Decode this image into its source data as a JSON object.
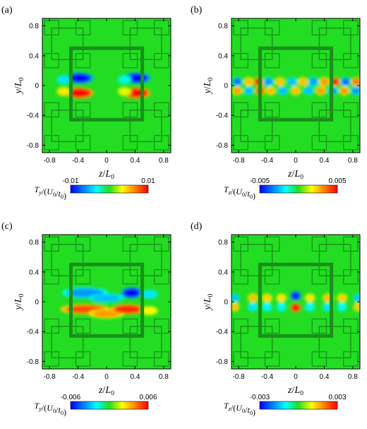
{
  "chart_data": [
    {
      "type": "heatmap",
      "panel_label": "(a)",
      "xlabel": "z/L0",
      "ylabel": "y/L0",
      "xticks": [
        "-0.8",
        "-0.4",
        "0",
        "0.4",
        "0.8"
      ],
      "yticks": [
        "0.8",
        "0.4",
        "0",
        "-0.4",
        "-0.8"
      ],
      "xlim": [
        -0.9,
        0.9
      ],
      "ylim": [
        -0.9,
        0.9
      ],
      "colorbar": {
        "label": "Ty/(U0/t0)",
        "min": -0.01,
        "max": 0.01,
        "min_label": "-0.01",
        "max_label": "0.01"
      },
      "field": [
        {
          "z": -0.38,
          "y": 0.1,
          "value": -1.0,
          "sz": 0.16,
          "sy": 0.06
        },
        {
          "z": 0.42,
          "y": 0.1,
          "value": -1.0,
          "sz": 0.16,
          "sy": 0.06
        },
        {
          "z": -0.38,
          "y": -0.1,
          "value": 1.0,
          "sz": 0.16,
          "sy": 0.06
        },
        {
          "z": 0.42,
          "y": -0.1,
          "value": 1.0,
          "sz": 0.16,
          "sy": 0.06
        },
        {
          "z": -0.6,
          "y": 0.08,
          "value": -0.4,
          "sz": 0.08,
          "sy": 0.05
        },
        {
          "z": -0.6,
          "y": -0.08,
          "value": 0.4,
          "sz": 0.08,
          "sy": 0.05
        },
        {
          "z": 0.25,
          "y": 0.08,
          "value": -0.3,
          "sz": 0.08,
          "sy": 0.05
        },
        {
          "z": 0.25,
          "y": -0.08,
          "value": 0.3,
          "sz": 0.08,
          "sy": 0.05
        }
      ]
    },
    {
      "type": "heatmap",
      "panel_label": "(b)",
      "xlabel": "z/L0",
      "ylabel": "y/L0",
      "xticks": [
        "-0.8",
        "-0.4",
        "0",
        "0.4",
        "0.8"
      ],
      "yticks": [
        "0.8",
        "0.4",
        "0",
        "-0.4",
        "-0.8"
      ],
      "xlim": [
        -0.9,
        0.9
      ],
      "ylim": [
        -0.9,
        0.9
      ],
      "colorbar": {
        "label": "Tz/(U0/t0)",
        "min": -0.005,
        "max": 0.005,
        "min_label": "-0.005",
        "max_label": "0.005"
      },
      "field": [
        {
          "z": -0.82,
          "y": 0.05,
          "value": -0.7,
          "sz": 0.06,
          "sy": 0.05
        },
        {
          "z": -0.66,
          "y": 0.05,
          "value": 0.5,
          "sz": 0.06,
          "sy": 0.05
        },
        {
          "z": -0.52,
          "y": 0.05,
          "value": 0.9,
          "sz": 0.06,
          "sy": 0.05
        },
        {
          "z": -0.38,
          "y": 0.05,
          "value": -0.6,
          "sz": 0.06,
          "sy": 0.05
        },
        {
          "z": -0.22,
          "y": 0.05,
          "value": 0.5,
          "sz": 0.06,
          "sy": 0.05
        },
        {
          "z": -0.05,
          "y": 0.05,
          "value": -0.5,
          "sz": 0.06,
          "sy": 0.05
        },
        {
          "z": 0.1,
          "y": 0.05,
          "value": 0.5,
          "sz": 0.06,
          "sy": 0.05
        },
        {
          "z": 0.25,
          "y": 0.05,
          "value": -0.6,
          "sz": 0.06,
          "sy": 0.05
        },
        {
          "z": 0.4,
          "y": 0.05,
          "value": 0.6,
          "sz": 0.06,
          "sy": 0.05
        },
        {
          "z": 0.55,
          "y": 0.05,
          "value": 0.9,
          "sz": 0.06,
          "sy": 0.05
        },
        {
          "z": 0.7,
          "y": 0.05,
          "value": -0.7,
          "sz": 0.06,
          "sy": 0.05
        },
        {
          "z": 0.85,
          "y": 0.05,
          "value": 0.7,
          "sz": 0.06,
          "sy": 0.05
        },
        {
          "z": -0.82,
          "y": -0.07,
          "value": 0.6,
          "sz": 0.06,
          "sy": 0.05
        },
        {
          "z": -0.66,
          "y": -0.07,
          "value": -0.5,
          "sz": 0.06,
          "sy": 0.05
        },
        {
          "z": -0.5,
          "y": -0.07,
          "value": 0.8,
          "sz": 0.06,
          "sy": 0.05
        },
        {
          "z": -0.35,
          "y": -0.07,
          "value": 0.5,
          "sz": 0.06,
          "sy": 0.05
        },
        {
          "z": -0.18,
          "y": -0.07,
          "value": -0.5,
          "sz": 0.06,
          "sy": 0.05
        },
        {
          "z": 0.0,
          "y": -0.07,
          "value": 0.5,
          "sz": 0.06,
          "sy": 0.05
        },
        {
          "z": 0.18,
          "y": -0.07,
          "value": -0.5,
          "sz": 0.06,
          "sy": 0.05
        },
        {
          "z": 0.35,
          "y": -0.07,
          "value": 0.6,
          "sz": 0.06,
          "sy": 0.05
        },
        {
          "z": 0.52,
          "y": -0.07,
          "value": -0.6,
          "sz": 0.06,
          "sy": 0.05
        },
        {
          "z": 0.68,
          "y": -0.07,
          "value": 0.6,
          "sz": 0.06,
          "sy": 0.05
        },
        {
          "z": 0.84,
          "y": -0.07,
          "value": -0.6,
          "sz": 0.06,
          "sy": 0.05
        }
      ]
    },
    {
      "type": "heatmap",
      "panel_label": "(c)",
      "xlabel": "z/L0",
      "ylabel": "y/L0",
      "xticks": [
        "-0.8",
        "-0.4",
        "0",
        "0.4",
        "0.8"
      ],
      "yticks": [
        "0.8",
        "0.4",
        "0",
        "-0.4",
        "-0.8"
      ],
      "xlim": [
        -0.9,
        0.9
      ],
      "ylim": [
        -0.9,
        0.9
      ],
      "colorbar": {
        "label": "Ty/(U0/t0)",
        "min": -0.006,
        "max": 0.006,
        "min_label": "-0.006",
        "max_label": "0.006"
      },
      "field": [
        {
          "z": -0.3,
          "y": 0.12,
          "value": -0.6,
          "sz": 0.26,
          "sy": 0.06
        },
        {
          "z": 0.0,
          "y": 0.05,
          "value": -0.5,
          "sz": 0.2,
          "sy": 0.05
        },
        {
          "z": 0.35,
          "y": 0.12,
          "value": -1.0,
          "sz": 0.12,
          "sy": 0.06
        },
        {
          "z": 0.6,
          "y": 0.1,
          "value": -0.4,
          "sz": 0.1,
          "sy": 0.05
        },
        {
          "z": -0.3,
          "y": -0.1,
          "value": 0.8,
          "sz": 0.28,
          "sy": 0.055
        },
        {
          "z": 0.0,
          "y": -0.16,
          "value": 0.6,
          "sz": 0.2,
          "sy": 0.05
        },
        {
          "z": 0.3,
          "y": -0.1,
          "value": 0.9,
          "sz": 0.2,
          "sy": 0.055
        },
        {
          "z": 0.6,
          "y": -0.12,
          "value": 0.35,
          "sz": 0.1,
          "sy": 0.05
        }
      ]
    },
    {
      "type": "heatmap",
      "panel_label": "(d)",
      "xlabel": "z/L0",
      "ylabel": "y/L0",
      "xticks": [
        "-0.8",
        "-0.4",
        "0",
        "0.4",
        "0.8"
      ],
      "yticks": [
        "0.8",
        "0.4",
        "0",
        "-0.4",
        "-0.8"
      ],
      "xlim": [
        -0.9,
        0.9
      ],
      "ylim": [
        -0.9,
        0.9
      ],
      "colorbar": {
        "label": "Tz/(U0/t0)",
        "min": -0.003,
        "max": 0.003,
        "min_label": "-0.003",
        "max_label": "0.003"
      },
      "field": [
        {
          "z": 0.0,
          "y": 0.08,
          "value": -1.0,
          "sz": 0.06,
          "sy": 0.05
        },
        {
          "z": 0.0,
          "y": -0.08,
          "value": 1.0,
          "sz": 0.06,
          "sy": 0.05
        },
        {
          "z": -0.85,
          "y": 0.05,
          "value": -0.5,
          "sz": 0.05,
          "sy": 0.05
        },
        {
          "z": -0.6,
          "y": 0.05,
          "value": 0.5,
          "sz": 0.06,
          "sy": 0.05
        },
        {
          "z": -0.4,
          "y": 0.05,
          "value": 0.45,
          "sz": 0.06,
          "sy": 0.05
        },
        {
          "z": -0.2,
          "y": 0.05,
          "value": 0.4,
          "sz": 0.06,
          "sy": 0.05
        },
        {
          "z": 0.2,
          "y": 0.05,
          "value": 0.4,
          "sz": 0.06,
          "sy": 0.05
        },
        {
          "z": 0.45,
          "y": 0.05,
          "value": 0.5,
          "sz": 0.06,
          "sy": 0.05
        },
        {
          "z": 0.65,
          "y": 0.05,
          "value": 0.45,
          "sz": 0.06,
          "sy": 0.05
        },
        {
          "z": 0.87,
          "y": 0.05,
          "value": -0.5,
          "sz": 0.05,
          "sy": 0.05
        },
        {
          "z": -0.85,
          "y": -0.07,
          "value": 0.5,
          "sz": 0.05,
          "sy": 0.05
        },
        {
          "z": -0.6,
          "y": -0.07,
          "value": -0.4,
          "sz": 0.06,
          "sy": 0.05
        },
        {
          "z": -0.4,
          "y": -0.07,
          "value": -0.35,
          "sz": 0.06,
          "sy": 0.05
        },
        {
          "z": -0.2,
          "y": -0.07,
          "value": -0.35,
          "sz": 0.06,
          "sy": 0.05
        },
        {
          "z": 0.2,
          "y": -0.07,
          "value": -0.35,
          "sz": 0.06,
          "sy": 0.05
        },
        {
          "z": 0.45,
          "y": -0.07,
          "value": -0.4,
          "sz": 0.06,
          "sy": 0.05
        },
        {
          "z": 0.65,
          "y": -0.07,
          "value": -0.35,
          "sz": 0.06,
          "sy": 0.05
        },
        {
          "z": 0.87,
          "y": -0.07,
          "value": 0.5,
          "sz": 0.05,
          "sy": 0.05
        }
      ]
    }
  ],
  "colors": {
    "field_background": "#22dd22",
    "pattern_stroke": "#1a8f1a",
    "colormap": [
      "#0000ff",
      "#0080ff",
      "#00ffff",
      "#22dd22",
      "#ffff00",
      "#ff8000",
      "#ff0000"
    ]
  }
}
